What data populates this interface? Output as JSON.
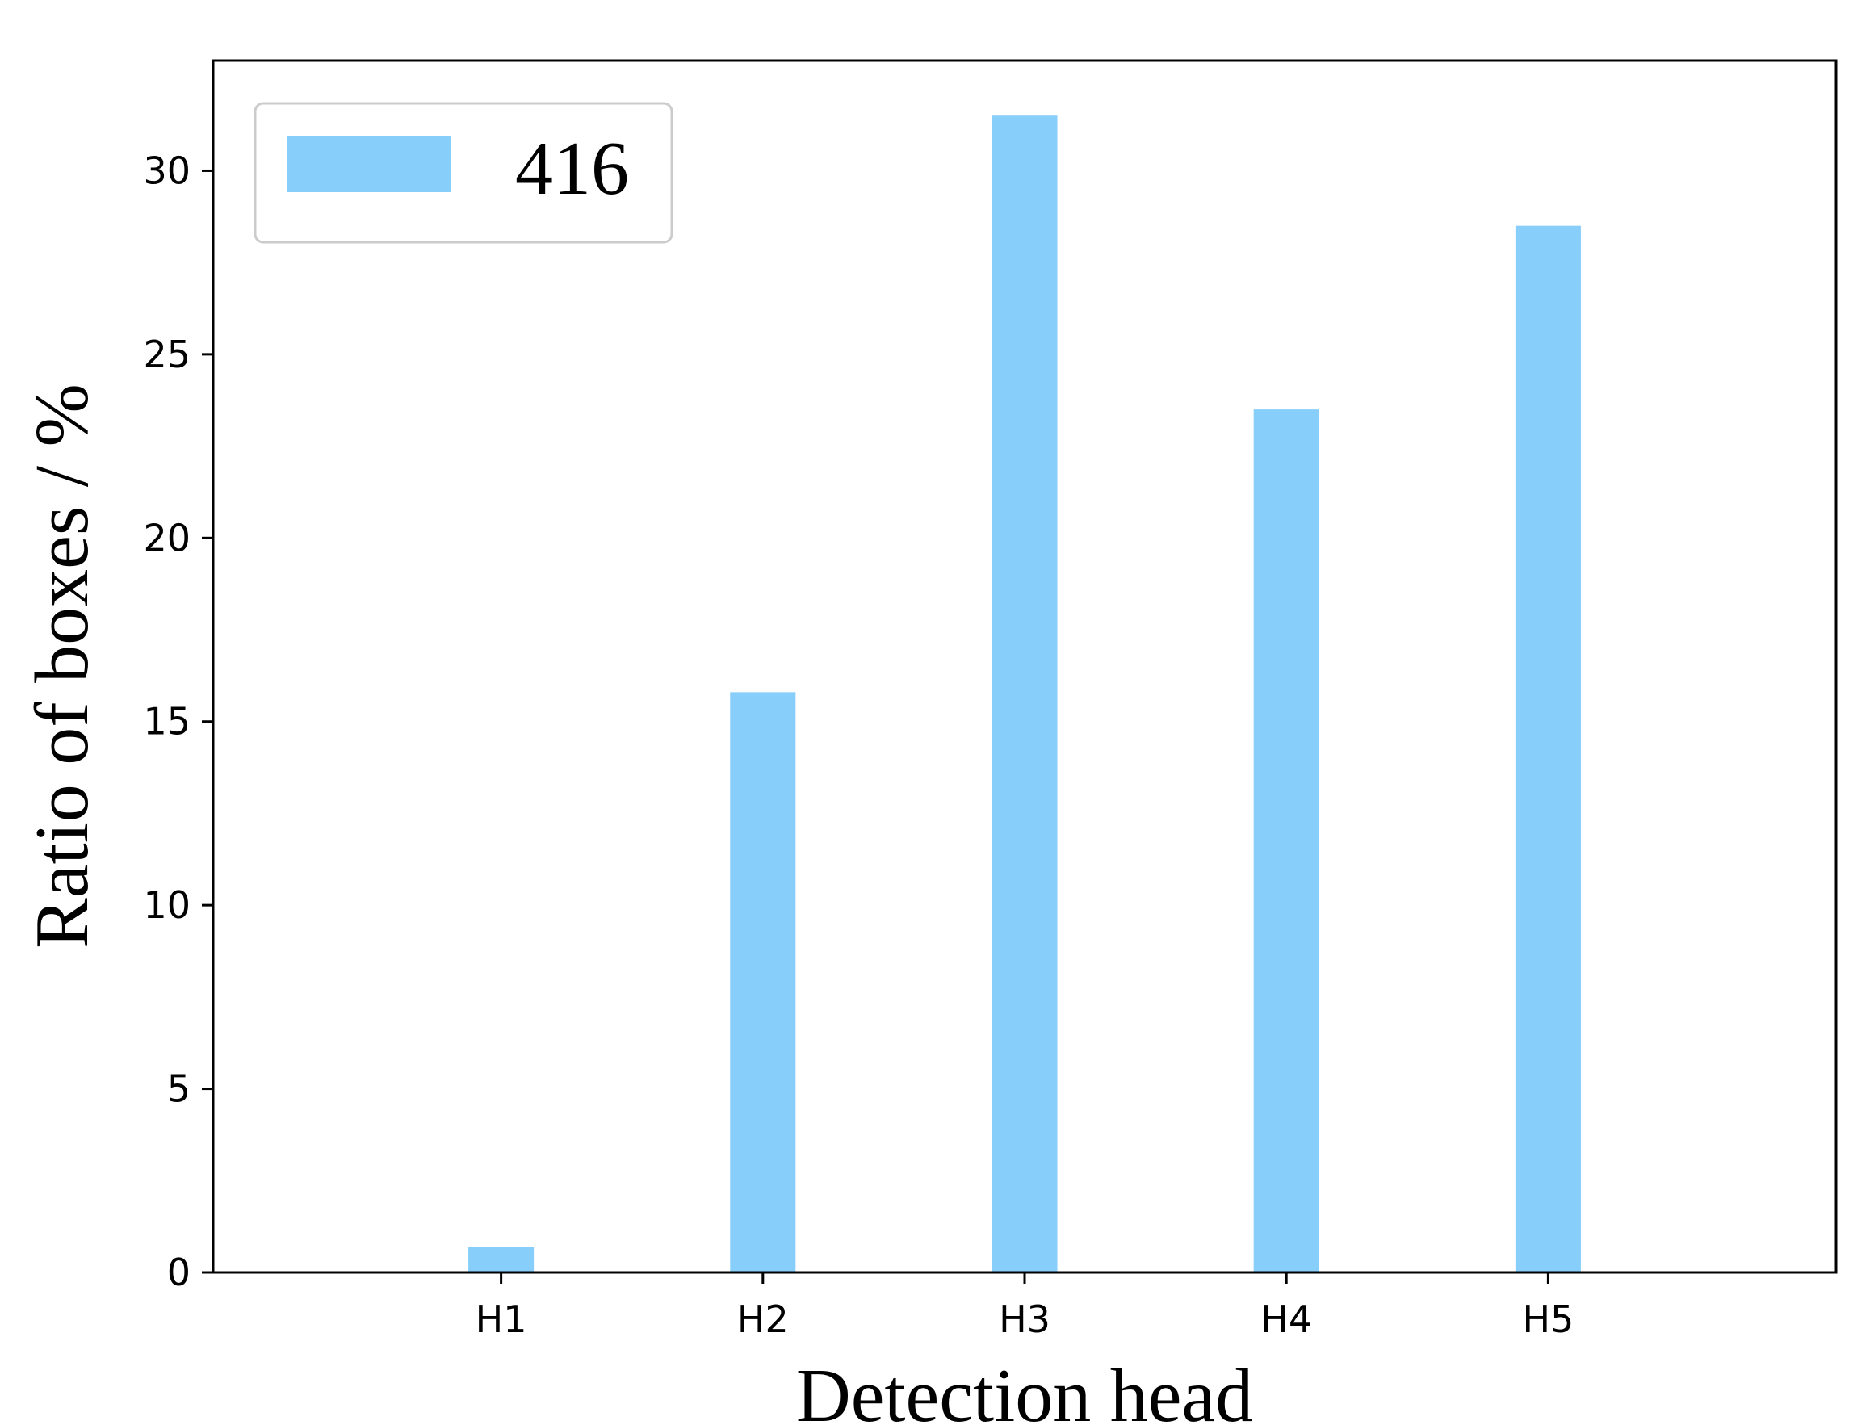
{
  "chart_data": {
    "type": "bar",
    "categories": [
      "H1",
      "H2",
      "H3",
      "H4",
      "H5"
    ],
    "series": [
      {
        "name": "416",
        "values": [
          0.7,
          15.8,
          31.5,
          23.5,
          28.5
        ]
      }
    ],
    "title": "",
    "xlabel": "Detection head",
    "ylabel": "Ratio of boxes / %",
    "ylim": [
      0,
      33
    ],
    "yticks": [
      0,
      5,
      10,
      15,
      20,
      25,
      30
    ],
    "grid": false,
    "legend_position": "top-left",
    "colors": {
      "bar": "#87CEFA",
      "axis": "#000000",
      "legend_border": "#cccccc"
    }
  }
}
